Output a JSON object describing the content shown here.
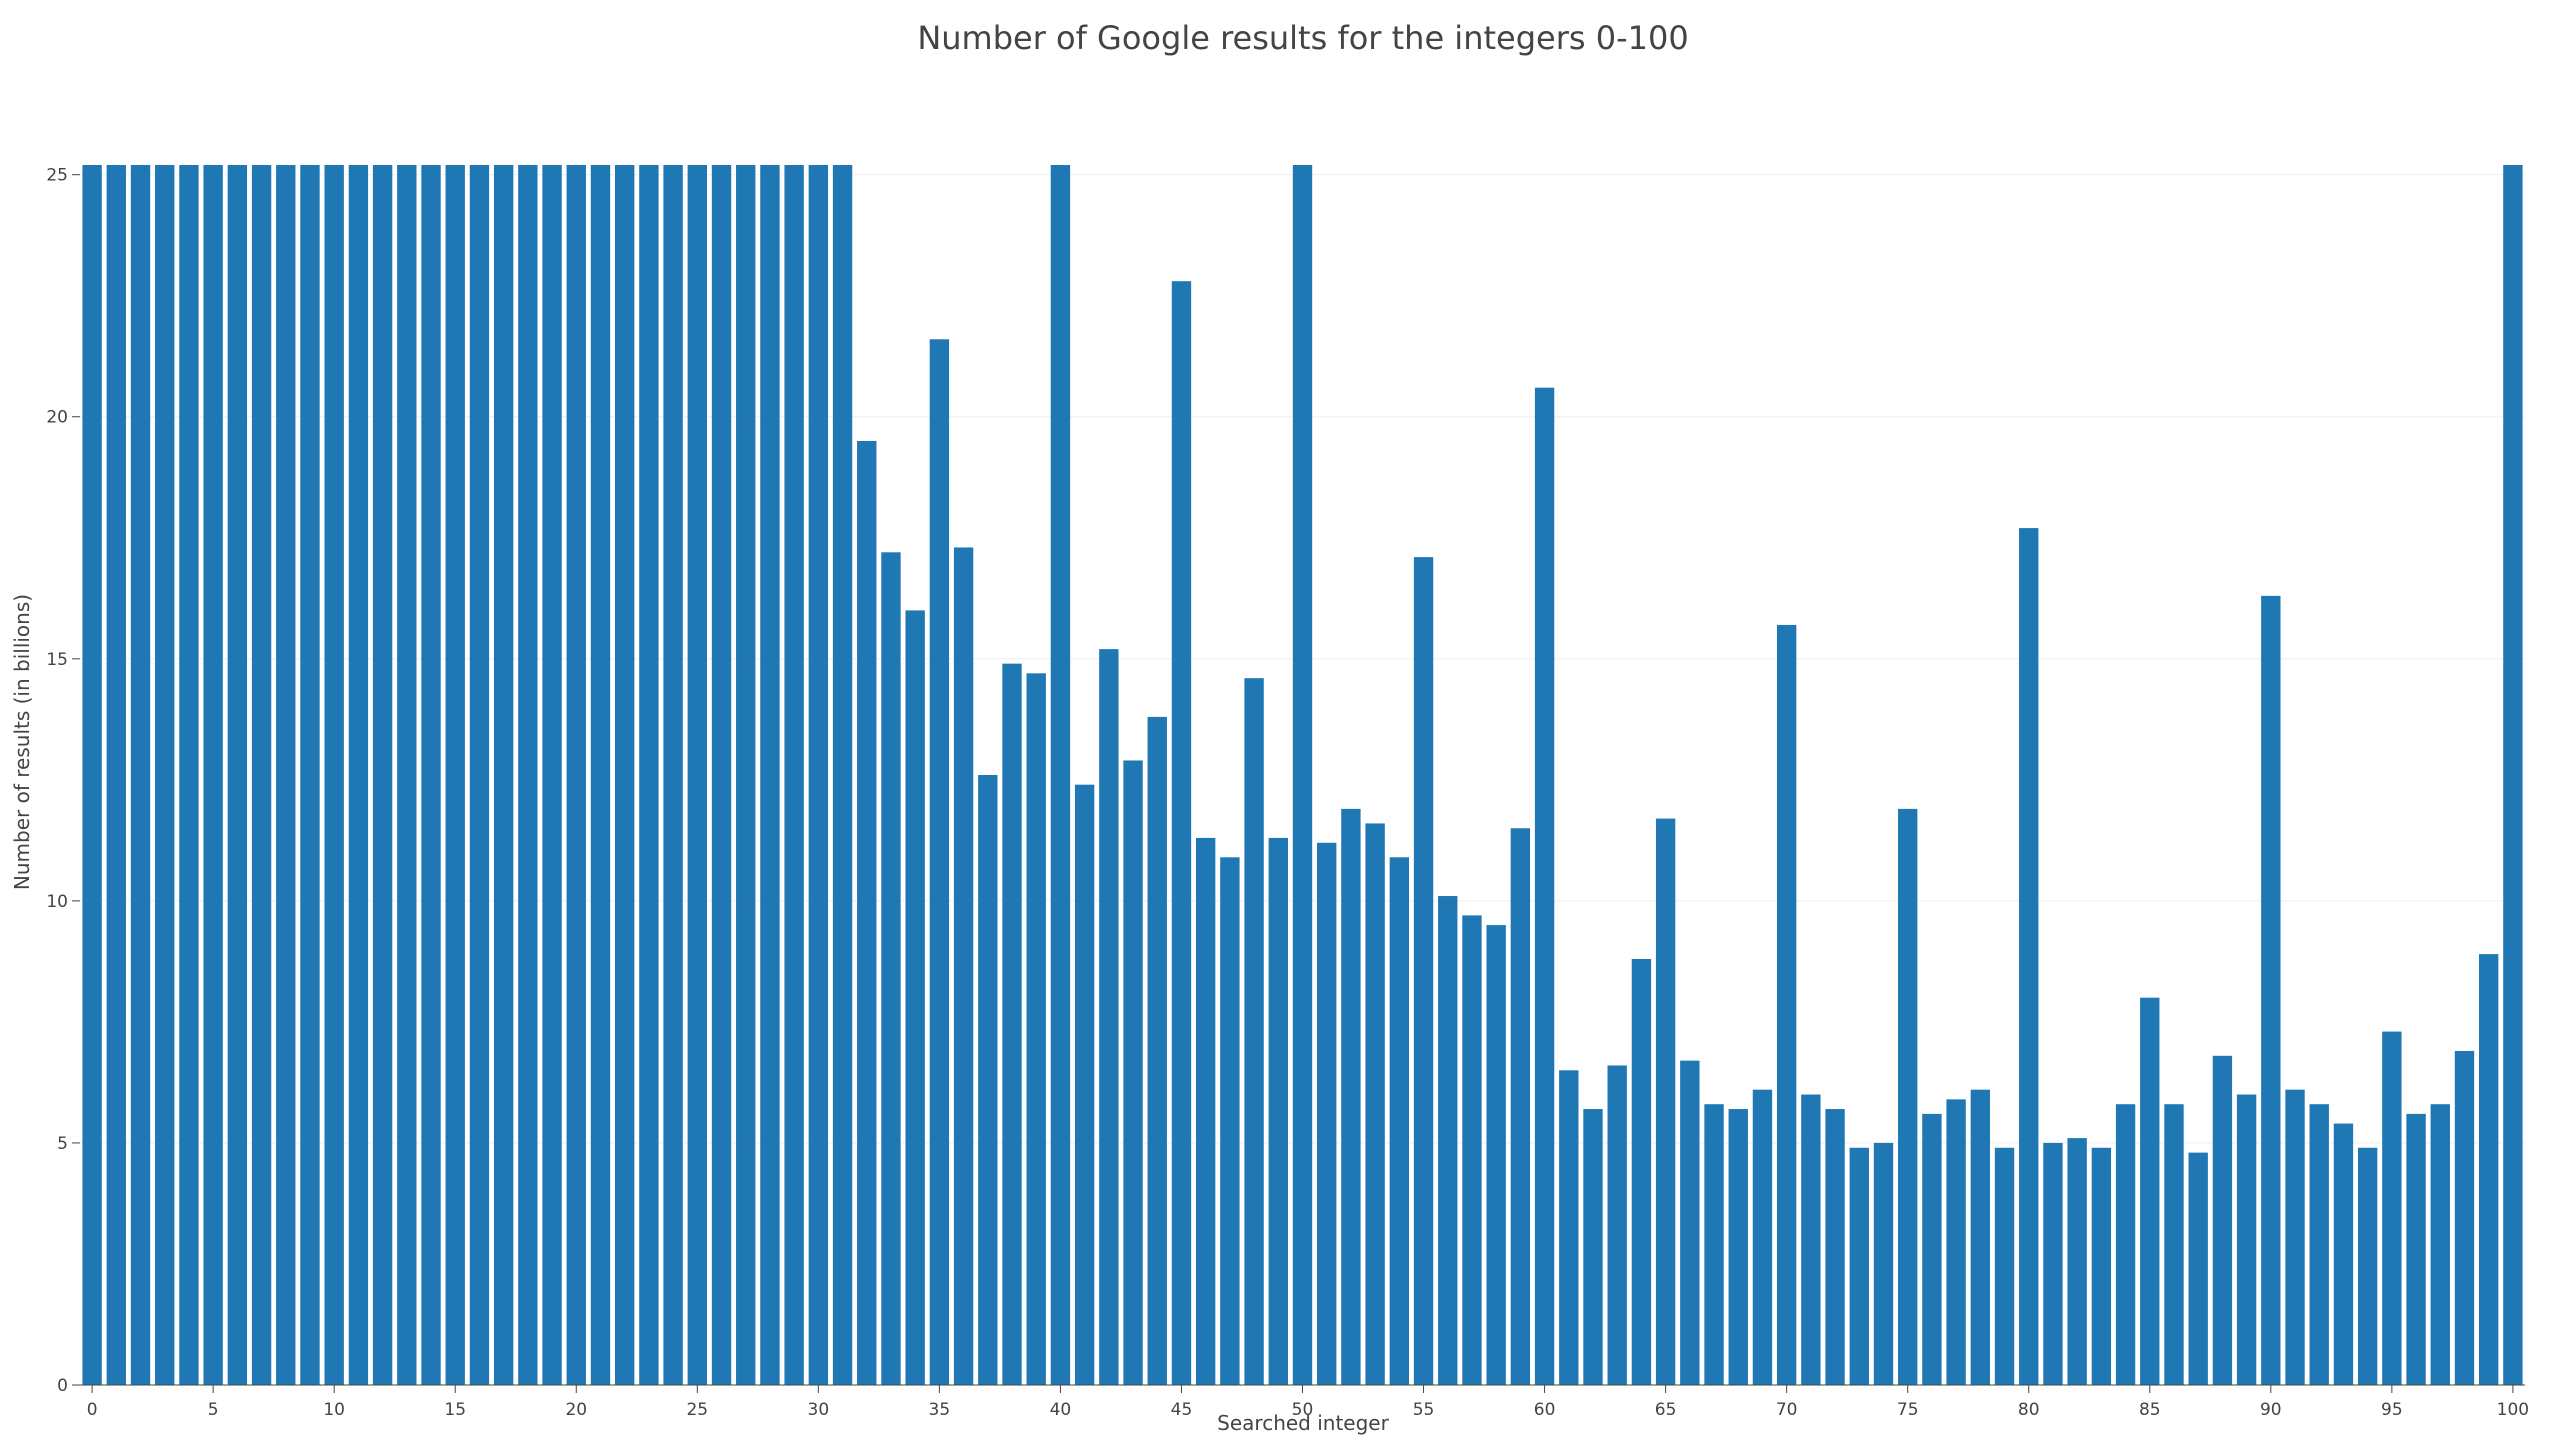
{
  "chart_data": {
    "type": "bar",
    "title": "Number of Google results for the integers 0-100",
    "xlabel": "Searched integer",
    "ylabel": "Number of results (in billions)",
    "ylim": [
      0,
      25.2
    ],
    "x_ticks": [
      "0",
      "5",
      "10",
      "15",
      "20",
      "25",
      "30",
      "35",
      "40",
      "45",
      "50",
      "55",
      "60",
      "65",
      "70",
      "75",
      "80",
      "85",
      "90",
      "95",
      "100"
    ],
    "y_ticks": [
      "0",
      "5",
      "10",
      "15",
      "20",
      "25"
    ],
    "color": "#1f77b4",
    "categories": [
      0,
      1,
      2,
      3,
      4,
      5,
      6,
      7,
      8,
      9,
      10,
      11,
      12,
      13,
      14,
      15,
      16,
      17,
      18,
      19,
      20,
      21,
      22,
      23,
      24,
      25,
      26,
      27,
      28,
      29,
      30,
      31,
      32,
      33,
      34,
      35,
      36,
      37,
      38,
      39,
      40,
      41,
      42,
      43,
      44,
      45,
      46,
      47,
      48,
      49,
      50,
      51,
      52,
      53,
      54,
      55,
      56,
      57,
      58,
      59,
      60,
      61,
      62,
      63,
      64,
      65,
      66,
      67,
      68,
      69,
      70,
      71,
      72,
      73,
      74,
      75,
      76,
      77,
      78,
      79,
      80,
      81,
      82,
      83,
      84,
      85,
      86,
      87,
      88,
      89,
      90,
      91,
      92,
      93,
      94,
      95,
      96,
      97,
      98,
      99,
      100
    ],
    "values": [
      25.2,
      25.2,
      25.2,
      25.2,
      25.2,
      25.2,
      25.2,
      25.2,
      25.2,
      25.2,
      25.2,
      25.2,
      25.2,
      25.2,
      25.2,
      25.2,
      25.2,
      25.2,
      25.2,
      25.2,
      25.2,
      25.2,
      25.2,
      25.2,
      25.2,
      25.2,
      25.2,
      25.2,
      25.2,
      25.2,
      25.2,
      25.2,
      19.5,
      17.2,
      16.0,
      21.6,
      17.3,
      12.6,
      14.9,
      14.7,
      25.2,
      12.4,
      15.2,
      12.9,
      13.8,
      22.8,
      11.3,
      10.9,
      14.6,
      11.3,
      25.2,
      11.2,
      11.9,
      11.6,
      10.9,
      17.1,
      10.1,
      9.7,
      9.5,
      11.5,
      20.6,
      6.5,
      5.7,
      6.6,
      8.8,
      11.7,
      6.7,
      5.8,
      5.7,
      6.1,
      15.7,
      6.0,
      5.7,
      4.9,
      5.0,
      11.9,
      5.6,
      5.9,
      6.1,
      4.9,
      17.7,
      5.0,
      5.1,
      4.9,
      5.8,
      8.0,
      5.8,
      4.8,
      6.8,
      6.0,
      16.3,
      6.1,
      5.8,
      5.4,
      4.9,
      7.3,
      5.6,
      5.8,
      6.9,
      8.9,
      25.2
    ]
  }
}
